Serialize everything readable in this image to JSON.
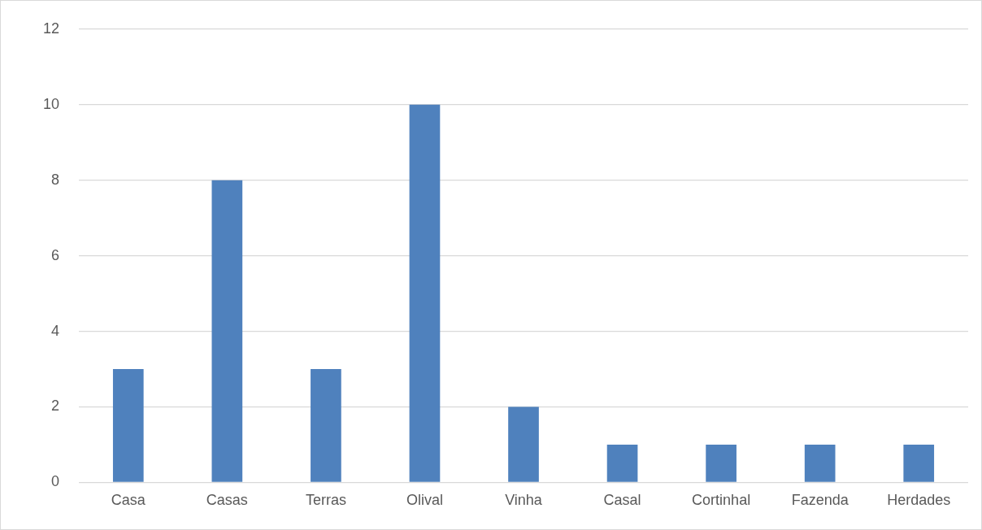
{
  "chart_data": {
    "type": "bar",
    "categories": [
      "Casa",
      "Casas",
      "Terras",
      "Olival",
      "Vinha",
      "Casal",
      "Cortinhal",
      "Fazenda",
      "Herdades"
    ],
    "values": [
      3,
      8,
      3,
      10,
      2,
      1,
      1,
      1,
      1
    ],
    "color": "#4f81bd",
    "ylim": [
      0,
      12
    ],
    "yticks": [
      0,
      2,
      4,
      6,
      8,
      10,
      12
    ],
    "grid": "y",
    "legend": false
  }
}
